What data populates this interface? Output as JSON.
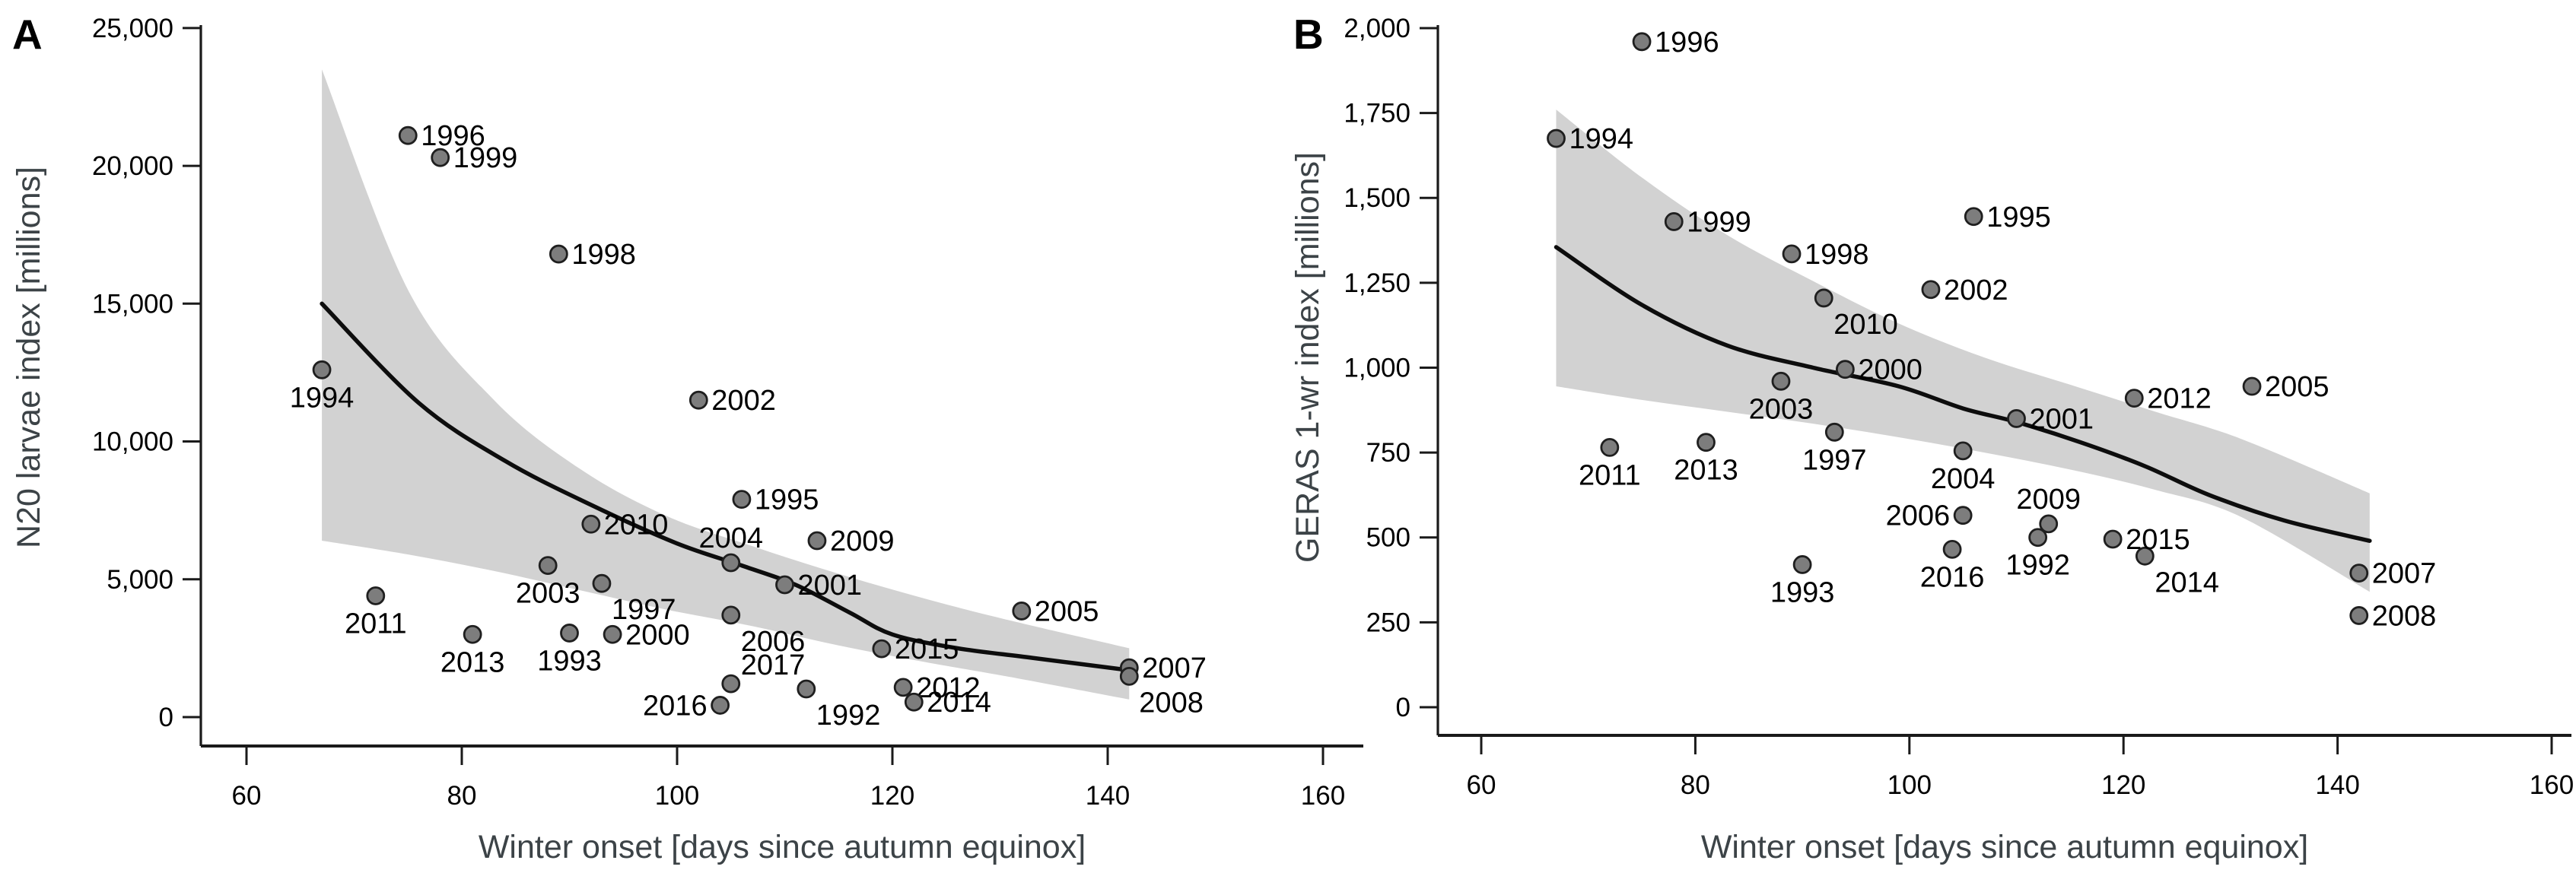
{
  "style": {
    "background": "#ffffff",
    "band_color": "#d2d2d2",
    "line_color": "#0d0d0d",
    "point_fill": "#7d7d7d",
    "point_stroke": "#1f1f1f",
    "axis_color": "#1a1a1a",
    "tick_label_color": "#000000",
    "year_label_color": "#000000",
    "axis_title_color": "#3c4347",
    "panel_letter_color": "#000000"
  },
  "chart_data": [
    {
      "panel_letter": "A",
      "type": "scatter",
      "xlabel": "Winter onset [days since autumn equinox]",
      "ylabel": "N20 larvae index [millions]",
      "xlim": [
        55,
        162
      ],
      "ylim": [
        0,
        25000
      ],
      "x_ticks": [
        60,
        80,
        100,
        120,
        140,
        160
      ],
      "x_tick_labels": [
        "60",
        "80",
        "100",
        "120",
        "140",
        "160"
      ],
      "y_ticks": [
        0,
        5000,
        10000,
        15000,
        20000,
        25000
      ],
      "y_tick_labels": [
        "0",
        "5,000",
        "10,000",
        "15,000",
        "20,000",
        "25,000"
      ],
      "grid": false,
      "points": [
        {
          "year": "1992",
          "x": 112,
          "y": 1020,
          "label_anchor": "br"
        },
        {
          "year": "1993",
          "x": 90,
          "y": 3050,
          "label_anchor": "b"
        },
        {
          "year": "1994",
          "x": 67,
          "y": 12600,
          "label_anchor": "b"
        },
        {
          "year": "1995",
          "x": 106,
          "y": 7900,
          "label_anchor": "r"
        },
        {
          "year": "1996",
          "x": 75,
          "y": 21100,
          "label_anchor": "r"
        },
        {
          "year": "1997",
          "x": 93,
          "y": 4850,
          "label_anchor": "br"
        },
        {
          "year": "1998",
          "x": 89,
          "y": 16800,
          "label_anchor": "r"
        },
        {
          "year": "1999",
          "x": 78,
          "y": 20300,
          "label_anchor": "r"
        },
        {
          "year": "2000",
          "x": 94,
          "y": 3000,
          "label_anchor": "r"
        },
        {
          "year": "2001",
          "x": 110,
          "y": 4800,
          "label_anchor": "r"
        },
        {
          "year": "2002",
          "x": 102,
          "y": 11500,
          "label_anchor": "r"
        },
        {
          "year": "2003",
          "x": 88,
          "y": 5500,
          "label_anchor": "b"
        },
        {
          "year": "2004",
          "x": 105,
          "y": 5600,
          "label_anchor": "t"
        },
        {
          "year": "2005",
          "x": 132,
          "y": 3850,
          "label_anchor": "r"
        },
        {
          "year": "2006",
          "x": 105,
          "y": 3700,
          "label_anchor": "br"
        },
        {
          "year": "2007",
          "x": 142,
          "y": 1790,
          "label_anchor": "r"
        },
        {
          "year": "2008",
          "x": 142,
          "y": 1480,
          "label_anchor": "br"
        },
        {
          "year": "2009",
          "x": 113,
          "y": 6400,
          "label_anchor": "r"
        },
        {
          "year": "2010",
          "x": 92,
          "y": 7000,
          "label_anchor": "r"
        },
        {
          "year": "2011",
          "x": 72,
          "y": 4400,
          "label_anchor": "b"
        },
        {
          "year": "2012",
          "x": 121,
          "y": 1080,
          "label_anchor": "r"
        },
        {
          "year": "2013",
          "x": 81,
          "y": 3000,
          "label_anchor": "b"
        },
        {
          "year": "2014",
          "x": 122,
          "y": 545,
          "label_anchor": "r"
        },
        {
          "year": "2015",
          "x": 119,
          "y": 2480,
          "label_anchor": "r"
        },
        {
          "year": "2016",
          "x": 104,
          "y": 430,
          "label_anchor": "l"
        },
        {
          "year": "2017",
          "x": 105,
          "y": 1210,
          "label_anchor": "tr"
        }
      ],
      "trend_line": {
        "x": [
          67,
          76,
          84,
          92,
          100,
          106,
          111,
          116,
          120,
          126,
          133,
          142
        ],
        "y": [
          15000,
          11400,
          9300,
          7700,
          6300,
          5500,
          4800,
          3800,
          3000,
          2500,
          2150,
          1700
        ]
      },
      "confidence_band": {
        "x": [
          67,
          75,
          83,
          91,
          99,
          107,
          115,
          123,
          131,
          142
        ],
        "upper": [
          23500,
          15500,
          11500,
          9000,
          7300,
          6200,
          5200,
          4300,
          3500,
          2500
        ],
        "lower": [
          6400,
          5900,
          5300,
          4600,
          3900,
          3300,
          2600,
          2000,
          1450,
          640
        ]
      }
    },
    {
      "panel_letter": "B",
      "type": "scatter",
      "xlabel": "Winter onset [days since autumn equinox]",
      "ylabel": "GERAS 1-wr index [millions]",
      "xlim": [
        55,
        162
      ],
      "ylim": [
        0,
        2000
      ],
      "x_ticks": [
        60,
        80,
        100,
        120,
        140,
        160
      ],
      "x_tick_labels": [
        "60",
        "80",
        "100",
        "120",
        "140",
        "160"
      ],
      "y_ticks": [
        0,
        250,
        500,
        750,
        1000,
        1250,
        1500,
        1750,
        2000
      ],
      "y_tick_labels": [
        "0",
        "250",
        "500",
        "750",
        "1,000",
        "1,250",
        "1,500",
        "1,750",
        "2,000"
      ],
      "grid": false,
      "points": [
        {
          "year": "1992",
          "x": 112,
          "y": 500,
          "label_anchor": "b"
        },
        {
          "year": "1993",
          "x": 90,
          "y": 420,
          "label_anchor": "b"
        },
        {
          "year": "1994",
          "x": 67,
          "y": 1675,
          "label_anchor": "r"
        },
        {
          "year": "1995",
          "x": 106,
          "y": 1445,
          "label_anchor": "r"
        },
        {
          "year": "1996",
          "x": 75,
          "y": 1960,
          "label_anchor": "r"
        },
        {
          "year": "1997",
          "x": 93,
          "y": 810,
          "label_anchor": "b"
        },
        {
          "year": "1998",
          "x": 89,
          "y": 1335,
          "label_anchor": "r"
        },
        {
          "year": "1999",
          "x": 78,
          "y": 1430,
          "label_anchor": "r"
        },
        {
          "year": "2000",
          "x": 94,
          "y": 995,
          "label_anchor": "r"
        },
        {
          "year": "2001",
          "x": 110,
          "y": 850,
          "label_anchor": "r"
        },
        {
          "year": "2002",
          "x": 102,
          "y": 1230,
          "label_anchor": "r"
        },
        {
          "year": "2003",
          "x": 88,
          "y": 960,
          "label_anchor": "b"
        },
        {
          "year": "2004",
          "x": 105,
          "y": 755,
          "label_anchor": "b"
        },
        {
          "year": "2005",
          "x": 132,
          "y": 945,
          "label_anchor": "r"
        },
        {
          "year": "2006",
          "x": 105,
          "y": 565,
          "label_anchor": "l"
        },
        {
          "year": "2007",
          "x": 142,
          "y": 395,
          "label_anchor": "r"
        },
        {
          "year": "2008",
          "x": 142,
          "y": 270,
          "label_anchor": "r"
        },
        {
          "year": "2009",
          "x": 113,
          "y": 540,
          "label_anchor": "t"
        },
        {
          "year": "2010",
          "x": 92,
          "y": 1205,
          "label_anchor": "br"
        },
        {
          "year": "2011",
          "x": 72,
          "y": 765,
          "label_anchor": "b"
        },
        {
          "year": "2012",
          "x": 121,
          "y": 910,
          "label_anchor": "r"
        },
        {
          "year": "2013",
          "x": 81,
          "y": 780,
          "label_anchor": "b"
        },
        {
          "year": "2014",
          "x": 122,
          "y": 445,
          "label_anchor": "br"
        },
        {
          "year": "2015",
          "x": 119,
          "y": 495,
          "label_anchor": "r"
        },
        {
          "year": "2016",
          "x": 104,
          "y": 465,
          "label_anchor": "b"
        }
      ],
      "trend_line": {
        "x": [
          67,
          75,
          83,
          91,
          99,
          105,
          110,
          116,
          122,
          128,
          135,
          143
        ],
        "y": [
          1355,
          1185,
          1065,
          1000,
          945,
          880,
          840,
          780,
          710,
          625,
          550,
          490
        ]
      },
      "confidence_band": {
        "x": [
          67,
          75,
          83,
          91,
          99,
          107,
          115,
          123,
          131,
          143
        ],
        "upper": [
          1760,
          1560,
          1390,
          1255,
          1130,
          1030,
          950,
          870,
          790,
          630
        ],
        "lower": [
          945,
          905,
          870,
          835,
          795,
          750,
          700,
          640,
          560,
          340
        ]
      }
    }
  ]
}
